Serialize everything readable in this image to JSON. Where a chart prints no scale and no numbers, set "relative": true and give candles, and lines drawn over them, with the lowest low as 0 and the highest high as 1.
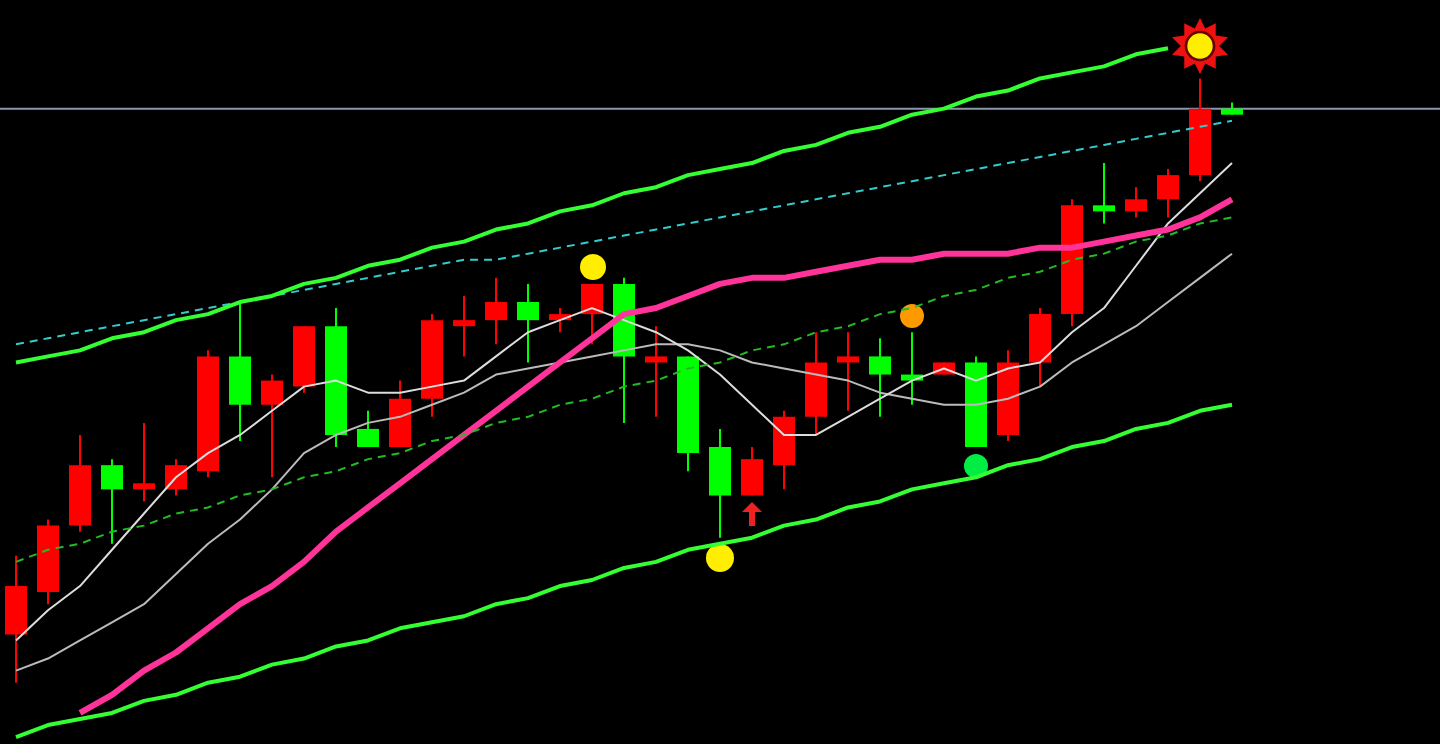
{
  "chart_data": {
    "type": "candlestick",
    "relative": true,
    "categories": [
      null,
      null,
      null,
      null,
      null,
      null,
      null,
      null,
      null,
      null,
      null,
      null,
      null,
      null,
      null,
      null,
      null,
      null,
      null,
      null,
      null,
      null,
      null,
      null,
      null,
      null,
      null,
      null,
      null,
      null,
      null,
      null,
      null,
      null,
      null,
      null,
      null,
      null,
      null
    ],
    "ohlc": [
      [
        0.08,
        0.21,
        0,
        0.16
      ],
      [
        0.15,
        0.27,
        0.13,
        0.26
      ],
      [
        0.26,
        0.41,
        0.25,
        0.36
      ],
      [
        0.36,
        0.37,
        0.23,
        0.32
      ],
      [
        0.32,
        0.43,
        0.3,
        0.33
      ],
      [
        0.32,
        0.37,
        0.31,
        0.36
      ],
      [
        0.35,
        0.55,
        0.34,
        0.54
      ],
      [
        0.54,
        0.63,
        0.4,
        0.46
      ],
      [
        0.46,
        0.51,
        0.34,
        0.5
      ],
      [
        0.49,
        0.59,
        0.48,
        0.59
      ],
      [
        0.59,
        0.62,
        0.39,
        0.41
      ],
      [
        0.42,
        0.45,
        0.39,
        0.39
      ],
      [
        0.39,
        0.5,
        0.39,
        0.47
      ],
      [
        0.47,
        0.61,
        0.44,
        0.6
      ],
      [
        0.59,
        0.64,
        0.54,
        0.6
      ],
      [
        0.6,
        0.67,
        0.56,
        0.63
      ],
      [
        0.63,
        0.66,
        0.53,
        0.6
      ],
      [
        0.6,
        0.62,
        0.58,
        0.61
      ],
      [
        0.61,
        0.66,
        0.56,
        0.66
      ],
      [
        0.66,
        0.67,
        0.43,
        0.54
      ],
      [
        0.53,
        0.59,
        0.44,
        0.54
      ],
      [
        0.54,
        0.54,
        0.35,
        0.38
      ],
      [
        0.39,
        0.42,
        0.24,
        0.31
      ],
      [
        0.31,
        0.39,
        0.31,
        0.37
      ],
      [
        0.36,
        0.45,
        0.32,
        0.44
      ],
      [
        0.44,
        0.58,
        0.41,
        0.53
      ],
      [
        0.53,
        0.58,
        0.45,
        0.54
      ],
      [
        0.54,
        0.57,
        0.44,
        0.51
      ],
      [
        0.51,
        0.58,
        0.46,
        0.5
      ],
      [
        0.51,
        0.53,
        0.51,
        0.53
      ],
      [
        0.53,
        0.54,
        0.39,
        0.39
      ],
      [
        0.41,
        0.55,
        0.4,
        0.53
      ],
      [
        0.53,
        0.62,
        0.49,
        0.61
      ],
      [
        0.61,
        0.8,
        0.59,
        0.79
      ],
      [
        0.79,
        0.86,
        0.76,
        0.78
      ],
      [
        0.78,
        0.82,
        0.77,
        0.8
      ],
      [
        0.8,
        0.85,
        0.77,
        0.84
      ],
      [
        0.84,
        1,
        0.83,
        0.95
      ],
      [
        0.95,
        0.96,
        0.94,
        0.94
      ]
    ],
    "colors": [
      "#ff0000",
      "#ff0000",
      "#ff0000",
      "#00ff00",
      "#ff0000",
      "#ff0000",
      "#ff0000",
      "#00ff00",
      "#ff0000",
      "#ff0000",
      "#00ff00",
      "#00ff00",
      "#ff0000",
      "#ff0000",
      "#ff0000",
      "#ff0000",
      "#00ff00",
      "#ff0000",
      "#ff0000",
      "#00ff00",
      "#ff0000",
      "#00ff00",
      "#00ff00",
      "#ff0000",
      "#ff0000",
      "#ff0000",
      "#ff0000",
      "#00ff00",
      "#00ff00",
      "#ff0000",
      "#00ff00",
      "#ff0000",
      "#ff0000",
      "#ff0000",
      "#00ff00",
      "#ff0000",
      "#ff0000",
      "#ff0000",
      "#00ff00"
    ],
    "series": [
      {
        "type": "line",
        "color": "#33ff33",
        "values": [
          0.53,
          0.54,
          0.55,
          0.57,
          0.58,
          0.6,
          0.61,
          0.63,
          0.64,
          0.66,
          0.67,
          0.69,
          0.7,
          0.72,
          0.73,
          0.75,
          0.76,
          0.78,
          0.79,
          0.81,
          0.82,
          0.84,
          0.85,
          0.86,
          0.88,
          0.89,
          0.91,
          0.92,
          0.94,
          0.95,
          0.97,
          0.98,
          1.0,
          1.01,
          1.02,
          1.04,
          1.05,
          null,
          null
        ]
      },
      {
        "type": "line",
        "color": "#33ff33",
        "values": [
          -0.09,
          -0.07,
          -0.06,
          -0.05,
          -0.03,
          -0.02,
          0.0,
          0.01,
          0.03,
          0.04,
          0.06,
          0.07,
          0.09,
          0.1,
          0.11,
          0.13,
          0.14,
          0.16,
          0.17,
          0.19,
          0.2,
          0.22,
          0.23,
          0.24,
          0.26,
          0.27,
          0.29,
          0.3,
          0.32,
          0.33,
          0.34,
          0.36,
          0.37,
          0.39,
          0.4,
          0.42,
          0.43,
          0.45,
          0.46
        ]
      },
      {
        "type": "line",
        "color": "#33cccc",
        "line_style": "dashed",
        "values": [
          0.56,
          0.57,
          0.58,
          0.59,
          0.6,
          0.61,
          0.62,
          0.63,
          0.64,
          0.65,
          0.66,
          0.67,
          0.68,
          0.69,
          0.7,
          0.7,
          0.71,
          0.72,
          0.73,
          0.74,
          0.75,
          0.76,
          0.77,
          0.78,
          0.79,
          0.8,
          0.81,
          0.82,
          0.83,
          0.84,
          0.85,
          0.86,
          0.87,
          0.88,
          0.89,
          0.9,
          0.91,
          0.92,
          0.93
        ]
      },
      {
        "type": "line",
        "color": "#22bb22",
        "line_style": "dashed",
        "values": [
          0.2,
          0.22,
          0.23,
          0.25,
          0.26,
          0.28,
          0.29,
          0.31,
          0.32,
          0.34,
          0.35,
          0.37,
          0.38,
          0.4,
          0.41,
          0.43,
          0.44,
          0.46,
          0.47,
          0.49,
          0.5,
          0.52,
          0.53,
          0.55,
          0.56,
          0.58,
          0.59,
          0.61,
          0.62,
          0.64,
          0.65,
          0.67,
          0.68,
          0.7,
          0.71,
          0.73,
          0.74,
          0.76,
          0.77
        ]
      },
      {
        "type": "line",
        "color": "#ff3399",
        "values": [
          null,
          null,
          -0.05,
          -0.02,
          0.02,
          0.05,
          0.09,
          0.13,
          0.16,
          0.2,
          0.25,
          0.29,
          0.33,
          0.37,
          0.41,
          0.45,
          0.49,
          0.53,
          0.57,
          0.61,
          0.62,
          0.64,
          0.66,
          0.67,
          0.67,
          0.68,
          0.69,
          0.7,
          0.7,
          0.71,
          0.71,
          0.71,
          0.72,
          0.72,
          0.73,
          0.74,
          0.75,
          0.77,
          0.8
        ]
      },
      {
        "type": "line",
        "color": "#dddddd",
        "values": [
          0.07,
          0.12,
          0.16,
          0.22,
          0.28,
          0.34,
          0.38,
          0.41,
          0.45,
          0.49,
          0.5,
          0.48,
          0.48,
          0.49,
          0.5,
          0.54,
          0.58,
          0.6,
          0.62,
          0.6,
          0.58,
          0.55,
          0.51,
          0.46,
          0.41,
          0.41,
          0.44,
          0.47,
          0.5,
          0.52,
          0.5,
          0.52,
          0.53,
          0.58,
          0.62,
          0.69,
          0.76,
          0.81,
          0.86
        ]
      },
      {
        "type": "line",
        "color": "#bbbbbb",
        "values": [
          0.02,
          0.04,
          0.07,
          0.1,
          0.13,
          0.18,
          0.23,
          0.27,
          0.32,
          0.38,
          0.41,
          0.43,
          0.44,
          0.46,
          0.48,
          0.51,
          0.52,
          0.53,
          0.54,
          0.55,
          0.56,
          0.56,
          0.55,
          0.53,
          0.52,
          0.51,
          0.5,
          0.48,
          0.47,
          0.46,
          0.46,
          0.47,
          0.49,
          0.53,
          0.56,
          0.59,
          0.63,
          0.67,
          0.71
        ]
      }
    ],
    "ref_lines": [
      {
        "axis": "y",
        "value": 0.95,
        "color": "#8899aa"
      }
    ],
    "grid": false,
    "legend": false,
    "tick_labels": false
  }
}
